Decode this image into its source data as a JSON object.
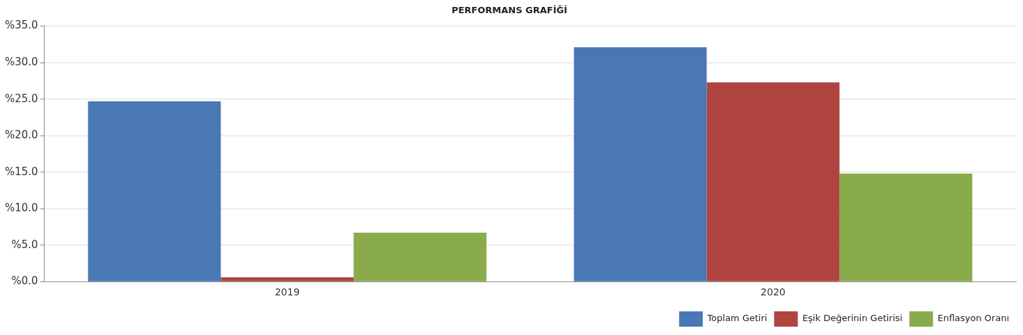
{
  "chart_data": {
    "type": "bar",
    "title": "PERFORMANS GRAFİĞİ",
    "categories": [
      "2019",
      "2020"
    ],
    "series": [
      {
        "name": "Toplam Getiri",
        "color": "#4a78b4",
        "values": [
          24.7,
          32.1
        ]
      },
      {
        "name": "Eşik Değerinin Getirisi",
        "color": "#b0443f",
        "values": [
          0.6,
          27.3
        ]
      },
      {
        "name": "Enflasyon Oranı",
        "color": "#8aab4c",
        "values": [
          6.7,
          14.8
        ]
      }
    ],
    "ylim": [
      0,
      35
    ],
    "yticks": [
      {
        "value": 0,
        "label": "%0.0"
      },
      {
        "value": 5,
        "label": "%5.0"
      },
      {
        "value": 10,
        "label": "%10.0"
      },
      {
        "value": 15,
        "label": "%15.0"
      },
      {
        "value": 20,
        "label": "%20.0"
      },
      {
        "value": 25,
        "label": "%25.0"
      },
      {
        "value": 30,
        "label": "%30.0"
      },
      {
        "value": 35,
        "label": "%35.0"
      }
    ],
    "grid": "y",
    "legend": "bottom right"
  }
}
